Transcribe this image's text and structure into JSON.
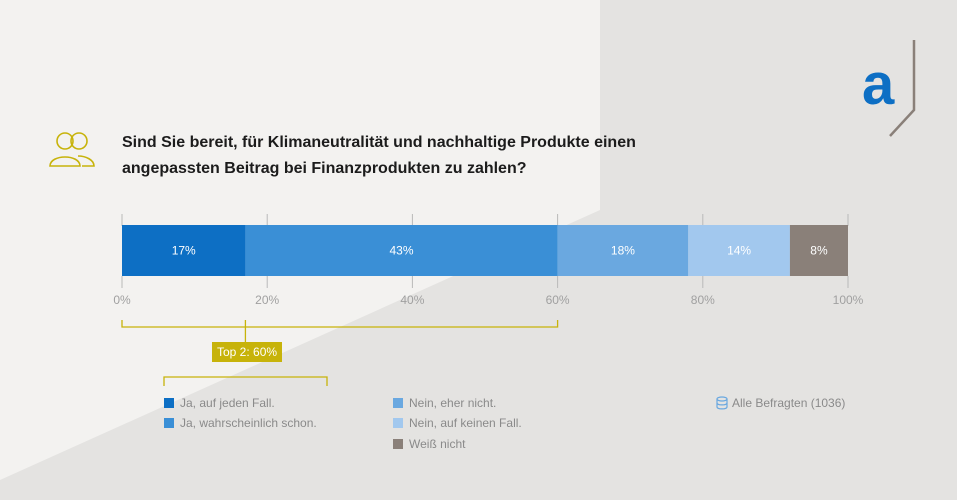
{
  "title": {
    "line1": "Sind Sie bereit, für Klimaneutralität und nachhaltige Produkte einen",
    "line2": "angepassten Beitrag bei Finanzprodukten zu zahlen?"
  },
  "logo_letter": "a",
  "colors": {
    "ja_jeden_fall": "#0d6fc4",
    "ja_wahrscheinlich": "#3a8fd6",
    "nein_eher_nicht": "#6aa8e0",
    "nein_keinen_fall": "#a2c8ee",
    "weiss_nicht": "#8a8079",
    "accent": "#c7b30a"
  },
  "chart_data": {
    "type": "bar",
    "orientation": "horizontal-stacked",
    "series": [
      {
        "name": "Ja, auf jeden Fall.",
        "value": 17,
        "label": "17%"
      },
      {
        "name": "Ja, wahrscheinlich schon.",
        "value": 43,
        "label": "43%"
      },
      {
        "name": "Nein, eher nicht.",
        "value": 18,
        "label": "18%"
      },
      {
        "name": "Nein, auf keinen Fall.",
        "value": 14,
        "label": "14%"
      },
      {
        "name": "Weiß nicht",
        "value": 8,
        "label": "8%"
      }
    ],
    "xlim": [
      0,
      100
    ],
    "xticks": [
      "0%",
      "20%",
      "40%",
      "60%",
      "80%",
      "100%"
    ],
    "annotation": {
      "label": "Top 2: 60%",
      "from": 0,
      "to": 60,
      "split": 17
    },
    "base": "Alle Befragten (1036)"
  }
}
